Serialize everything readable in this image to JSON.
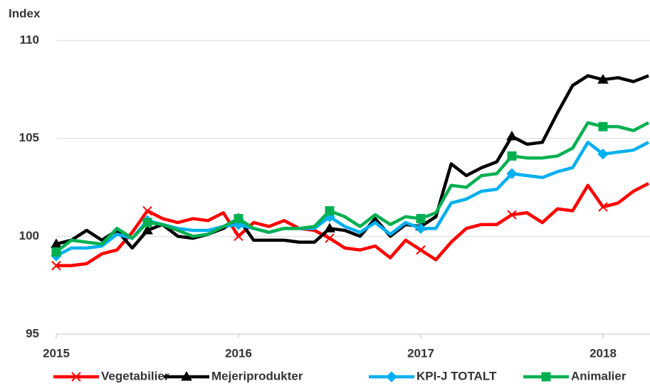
{
  "chart_data": {
    "type": "line",
    "y_label": "Index",
    "x": [
      2015,
      2015.083,
      2015.167,
      2015.25,
      2015.333,
      2015.417,
      2015.5,
      2015.583,
      2015.667,
      2015.75,
      2015.833,
      2015.917,
      2016,
      2016.083,
      2016.167,
      2016.25,
      2016.333,
      2016.417,
      2016.5,
      2016.583,
      2016.667,
      2016.75,
      2016.833,
      2016.917,
      2017,
      2017.083,
      2017.167,
      2017.25,
      2017.333,
      2017.417,
      2017.5,
      2017.583,
      2017.667,
      2017.75,
      2017.833,
      2017.917,
      2018,
      2018.083,
      2018.167,
      2018.25
    ],
    "xlim": [
      2015,
      2018.25
    ],
    "xticks": [
      2015,
      2016,
      2017,
      2018
    ],
    "ylim": [
      95,
      110
    ],
    "yticks": [
      95,
      100,
      105,
      110
    ],
    "grid": true,
    "series": [
      {
        "name": "Vegetabilier",
        "color": "#ff0000",
        "marker": "x",
        "values": [
          98.5,
          98.5,
          98.6,
          99.1,
          99.3,
          100.2,
          101.3,
          100.9,
          100.7,
          100.9,
          100.8,
          101.2,
          100.0,
          100.7,
          100.5,
          100.8,
          100.4,
          100.3,
          99.9,
          99.4,
          99.3,
          99.5,
          98.9,
          99.8,
          99.3,
          98.8,
          99.7,
          100.4,
          100.6,
          100.6,
          101.1,
          101.2,
          100.7,
          101.4,
          101.3,
          102.6,
          101.5,
          101.7,
          102.3,
          102.7
        ]
      },
      {
        "name": "Mejeriprodukter",
        "color": "#000000",
        "marker": "triangle",
        "values": [
          99.6,
          99.8,
          100.3,
          99.8,
          100.3,
          99.4,
          100.3,
          100.6,
          100.0,
          99.9,
          100.1,
          100.4,
          100.9,
          99.8,
          99.8,
          99.8,
          99.7,
          99.7,
          100.4,
          100.3,
          100.0,
          100.9,
          100.0,
          100.6,
          100.5,
          101.0,
          103.7,
          103.1,
          103.5,
          103.8,
          105.1,
          104.7,
          104.8,
          106.3,
          107.7,
          108.2,
          108.0,
          108.1,
          107.9,
          108.2
        ]
      },
      {
        "name": "KPI-J TOTALT",
        "color": "#00b0f0",
        "marker": "diamond",
        "values": [
          99.0,
          99.4,
          99.4,
          99.5,
          100.1,
          99.9,
          100.8,
          100.6,
          100.4,
          100.3,
          100.3,
          100.5,
          100.6,
          100.4,
          100.2,
          100.4,
          100.4,
          100.4,
          101.0,
          100.5,
          100.2,
          100.7,
          100.1,
          100.7,
          100.4,
          100.4,
          101.7,
          101.9,
          102.3,
          102.4,
          103.2,
          103.1,
          103.0,
          103.3,
          103.5,
          104.8,
          104.2,
          104.3,
          104.4,
          104.8
        ]
      },
      {
        "name": "Animalier",
        "color": "#00b050",
        "marker": "square",
        "values": [
          99.2,
          99.8,
          99.7,
          99.6,
          100.4,
          99.9,
          100.7,
          100.6,
          100.3,
          100.0,
          100.1,
          100.5,
          100.9,
          100.4,
          100.2,
          100.4,
          100.4,
          100.5,
          101.3,
          101.0,
          100.5,
          101.1,
          100.6,
          101.0,
          100.9,
          101.2,
          102.6,
          102.5,
          103.1,
          103.2,
          104.1,
          104.0,
          104.0,
          104.1,
          104.5,
          105.8,
          105.6,
          105.6,
          105.4,
          105.8
        ]
      }
    ]
  }
}
